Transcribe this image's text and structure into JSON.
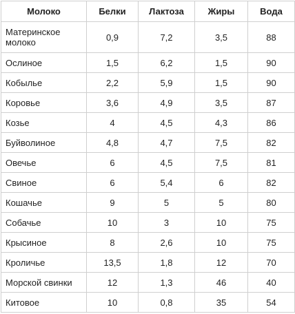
{
  "table": {
    "headers": [
      "Молоко",
      "Белки",
      "Лактоза",
      "Жиры",
      "Вода"
    ],
    "rows": [
      [
        "Материнское молоко",
        "0,9",
        "7,2",
        "3,5",
        "88"
      ],
      [
        "Ослиное",
        "1,5",
        "6,2",
        "1,5",
        "90"
      ],
      [
        "Кобылье",
        "2,2",
        "5,9",
        "1,5",
        "90"
      ],
      [
        "Коровье",
        "3,6",
        "4,9",
        "3,5",
        "87"
      ],
      [
        "Козье",
        "4",
        "4,5",
        "4,3",
        "86"
      ],
      [
        "Буйволиное",
        "4,8",
        "4,7",
        "7,5",
        "82"
      ],
      [
        "Овечье",
        "6",
        "4,5",
        "7,5",
        "81"
      ],
      [
        "Свиное",
        "6",
        "5,4",
        "6",
        "82"
      ],
      [
        "Кошачье",
        "9",
        "5",
        "5",
        "80"
      ],
      [
        "Собачье",
        "10",
        "3",
        "10",
        "75"
      ],
      [
        "Крысиное",
        "8",
        "2,6",
        "10",
        "75"
      ],
      [
        "Кроличье",
        "13,5",
        "1,8",
        "12",
        "70"
      ],
      [
        "Морской свинки",
        "12",
        "1,3",
        "46",
        "40"
      ],
      [
        "Китовое",
        "10",
        "0,8",
        "35",
        "54"
      ]
    ]
  }
}
